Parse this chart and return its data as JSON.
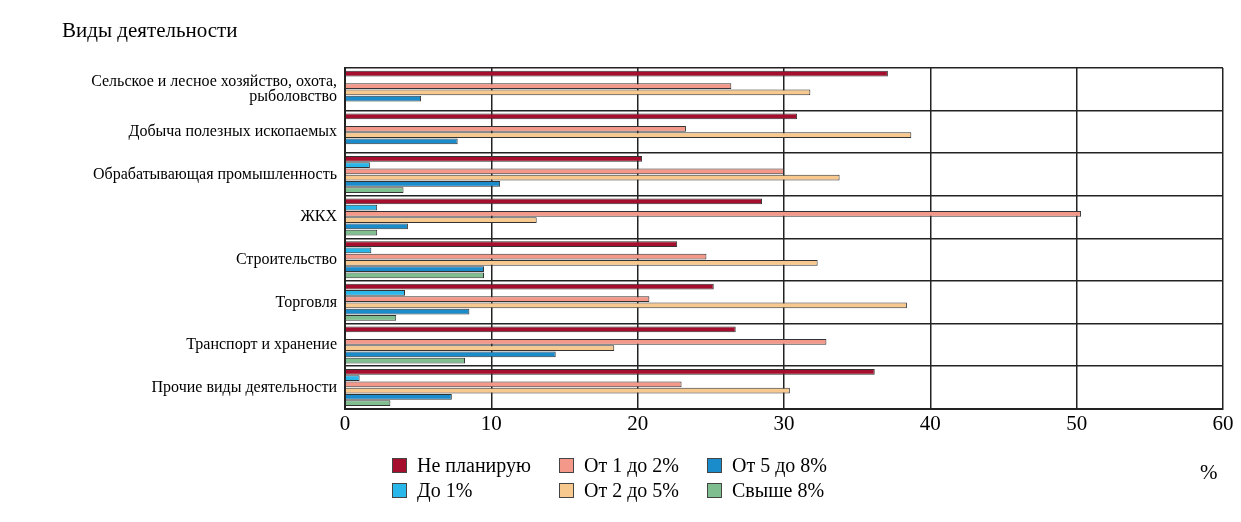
{
  "chart_data": {
    "type": "bar",
    "orientation": "horizontal",
    "ylabel": "Виды деятельности",
    "xlabel": "%",
    "categories": [
      "Сельское и лесное хозяйство, охота, рыболовство",
      "Добыча полезных ископаемых",
      "Обрабатывающая промышленность",
      "ЖКХ",
      "Строительство",
      "Торговля",
      "Транспорт и хранение",
      "Прочие виды деятельности"
    ],
    "series": [
      {
        "name": "Не планирую",
        "color": "#a50f2d",
        "values": [
          37.1,
          30.9,
          20.3,
          28.5,
          22.7,
          25.2,
          26.7,
          36.2
        ]
      },
      {
        "name": "До 1%",
        "color": "#29b6e8",
        "values": [
          null,
          null,
          1.7,
          2.2,
          1.8,
          4.1,
          null,
          1.0
        ]
      },
      {
        "name": "От 1 до 2%",
        "color": "#f4988a",
        "values": [
          26.4,
          23.3,
          30.0,
          50.3,
          24.7,
          20.8,
          32.9,
          23.0
        ]
      },
      {
        "name": "От 2 до 5%",
        "color": "#f7c98f",
        "values": [
          31.8,
          38.7,
          33.8,
          13.1,
          32.3,
          38.4,
          18.4,
          30.4
        ]
      },
      {
        "name": "От 5 до 8%",
        "color": "#1a8ccc",
        "values": [
          5.2,
          7.7,
          10.6,
          4.3,
          9.5,
          8.5,
          14.4,
          7.3
        ]
      },
      {
        "name": "Свыше 8%",
        "color": "#7fbf8f",
        "values": [
          null,
          null,
          4.0,
          2.2,
          9.5,
          3.5,
          8.2,
          3.1
        ]
      }
    ],
    "xlim": [
      0,
      60
    ],
    "xticks": [
      0,
      10,
      20,
      30,
      40,
      50,
      60
    ],
    "grid": true,
    "legend": "bottom"
  }
}
